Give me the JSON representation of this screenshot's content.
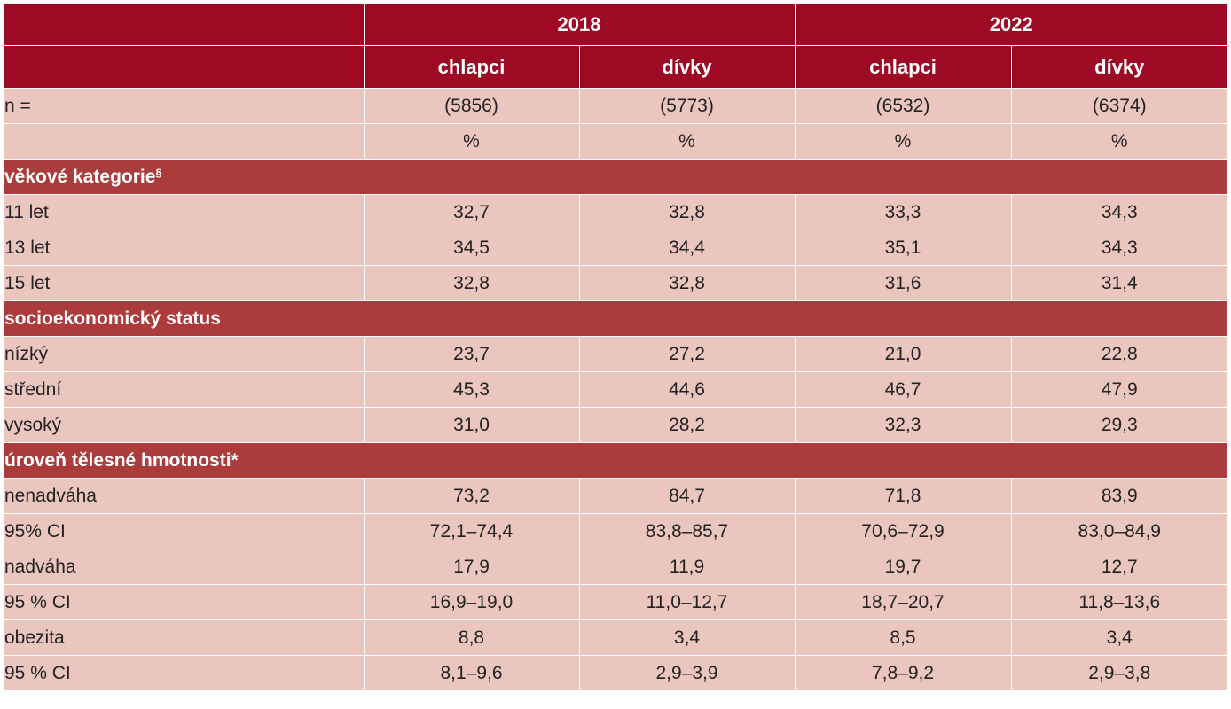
{
  "header": {
    "years": [
      "2018",
      "2022"
    ],
    "genders": [
      "chlapci",
      "dívky",
      "chlapci",
      "dívky"
    ]
  },
  "n_row": {
    "label": "n =",
    "values": [
      "(5856)",
      "(5773)",
      "(6532)",
      "(6374)"
    ]
  },
  "unit_row": {
    "label": "",
    "values": [
      "%",
      "%",
      "%",
      "%"
    ]
  },
  "sections": [
    {
      "title": "věkové kategorie",
      "mark": "§",
      "rows": [
        {
          "label": "11 let",
          "values": [
            "32,7",
            "32,8",
            "33,3",
            "34,3"
          ]
        },
        {
          "label": "13 let",
          "values": [
            "34,5",
            "34,4",
            "35,1",
            "34,3"
          ]
        },
        {
          "label": "15 let",
          "values": [
            "32,8",
            "32,8",
            "31,6",
            "31,4"
          ]
        }
      ]
    },
    {
      "title": "socioekonomický status",
      "mark": "",
      "rows": [
        {
          "label": "nízký",
          "values": [
            "23,7",
            "27,2",
            "21,0",
            "22,8"
          ]
        },
        {
          "label": "střední",
          "values": [
            "45,3",
            "44,6",
            "46,7",
            "47,9"
          ]
        },
        {
          "label": "vysoký",
          "values": [
            "31,0",
            "28,2",
            "32,3",
            "29,3"
          ]
        }
      ]
    },
    {
      "title": "úroveň tělesné hmotnosti*",
      "mark": "",
      "rows": [
        {
          "label": "nenadváha",
          "values": [
            "73,2",
            "84,7",
            "71,8",
            "83,9"
          ]
        },
        {
          "label": "95% CI",
          "values": [
            "72,1–74,4",
            "83,8–85,7",
            "70,6–72,9",
            "83,0–84,9"
          ]
        },
        {
          "label": "nadváha",
          "values": [
            "17,9",
            "11,9",
            "19,7",
            "12,7"
          ]
        },
        {
          "label": "95 % CI",
          "values": [
            "16,9–19,0",
            "11,0–12,7",
            "18,7–20,7",
            "11,8–13,6"
          ]
        },
        {
          "label": "obezita",
          "values": [
            "8,8",
            "3,4",
            "8,5",
            "3,4"
          ]
        },
        {
          "label": "95 % CI",
          "values": [
            "8,1–9,6",
            "2,9–3,9",
            "7,8–9,2",
            "2,9–3,8"
          ]
        }
      ]
    }
  ],
  "colors": {
    "header_bg": "#9e0a24",
    "section_bg": "#ac3c3c",
    "row_bg": "#ebc6bf",
    "text": "#222222"
  }
}
